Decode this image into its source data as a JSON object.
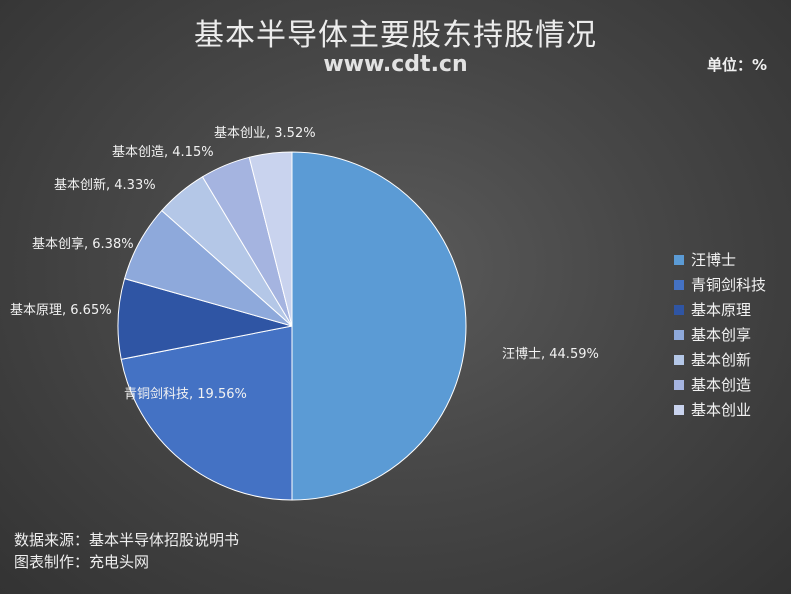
{
  "title": "基本半导体主要股东持股情况",
  "watermark": "www.cdt.cn",
  "unit_label": "单位：%",
  "footer": {
    "source": "数据来源：基本半导体招股说明书",
    "maker": "图表制作：充电头网"
  },
  "chart_data": {
    "type": "pie",
    "unit": "%",
    "slices": [
      {
        "name": "汪博士",
        "value": 44.59,
        "label": "汪博士, 44.59%",
        "color": "#5b9bd5"
      },
      {
        "name": "青铜剑科技",
        "value": 19.56,
        "label": "青铜剑科技, 19.56%",
        "color": "#4472c4"
      },
      {
        "name": "基本原理",
        "value": 6.65,
        "label": "基本原理, 6.65%",
        "color": "#2f55a4"
      },
      {
        "name": "基本创享",
        "value": 6.38,
        "label": "基本创享, 6.38%",
        "color": "#8ea9db"
      },
      {
        "name": "基本创新",
        "value": 4.33,
        "label": "基本创新, 4.33%",
        "color": "#b4c7e7"
      },
      {
        "name": "基本创造",
        "value": 4.15,
        "label": "基本创造, 4.15%",
        "color": "#a5b4e0"
      },
      {
        "name": "基本创业",
        "value": 3.52,
        "label": "基本创业, 3.52%",
        "color": "#c9d3ee"
      }
    ],
    "legend_position": "right"
  }
}
